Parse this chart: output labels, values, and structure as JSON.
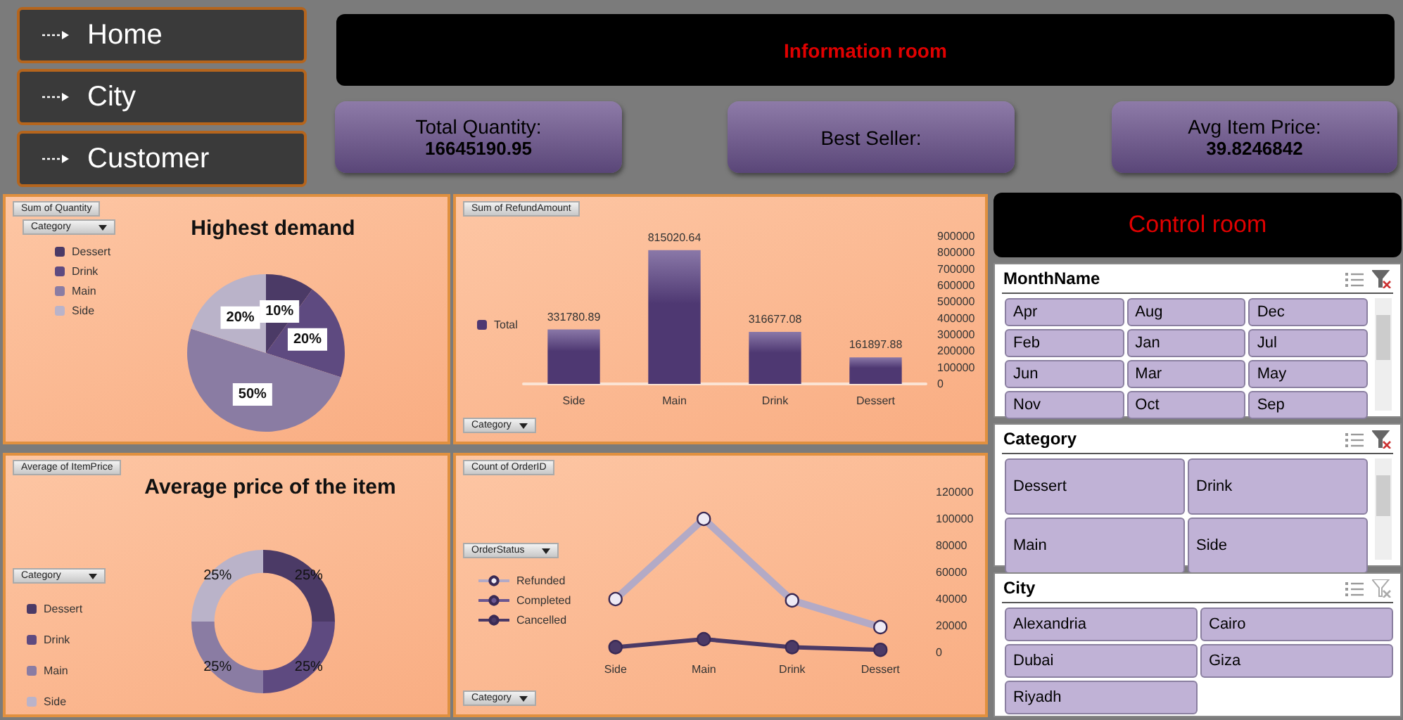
{
  "chart_data": [
    {
      "type": "other",
      "annotations": [
        "Home",
        "City",
        "Customer"
      ]
    },
    {
      "type": "other",
      "title": "Information room"
    },
    {
      "type": "other",
      "title": "Total Quantity:",
      "annotations": [
        "16645190.95"
      ]
    },
    {
      "type": "other",
      "title": "Best Seller:"
    },
    {
      "type": "other",
      "title": "Avg Item Price:",
      "annotations": [
        "39.8246842"
      ]
    },
    {
      "type": "pie",
      "title": "Highest demand",
      "categories": [
        "Dessert",
        "Drink",
        "Main",
        "Side"
      ],
      "values": [
        10,
        20,
        50,
        20
      ],
      "value_labels": [
        "10%",
        "20%",
        "50%",
        "20%"
      ],
      "colors": [
        "#4b3a66",
        "#5e4a80",
        "#8a7ca3",
        "#bab3c9"
      ],
      "legend": "top left",
      "legend_title": "Category",
      "annotations": [
        "Sum of Quantity"
      ]
    },
    {
      "type": "bar",
      "categories": [
        "Side",
        "Main",
        "Drink",
        "Dessert"
      ],
      "series": [
        {
          "name": "Total",
          "color": "#4e3872",
          "values": [
            331780.89,
            815020.64,
            316677.08,
            161897.88
          ]
        }
      ],
      "ylim": [
        0,
        900000
      ],
      "yticks": [
        0,
        100000,
        200000,
        300000,
        400000,
        500000,
        600000,
        700000,
        800000,
        900000
      ],
      "data_labels": true,
      "legend": "left",
      "annotations": [
        "Sum of RefundAmount",
        "Category"
      ]
    },
    {
      "type": "donut",
      "title": "Average price of the item",
      "categories": [
        "Dessert",
        "Drink",
        "Main",
        "Side"
      ],
      "values": [
        25,
        25,
        25,
        25
      ],
      "value_labels": [
        "25%",
        "25%",
        "25%",
        "25%"
      ],
      "colors": [
        "#4b3a66",
        "#5e4a80",
        "#8a7ca3",
        "#bab3c9"
      ],
      "legend": "left",
      "legend_title": "Category",
      "annotations": [
        "Average of ItemPrice"
      ]
    },
    {
      "type": "line",
      "categories": [
        "Side",
        "Main",
        "Drink",
        "Dessert"
      ],
      "series": [
        {
          "name": "Refunded",
          "color": "#b3aac6",
          "values": [
            40000,
            100000,
            39000,
            19000
          ]
        },
        {
          "name": "Completed",
          "color": "#6a5690",
          "values": [
            null,
            null,
            null,
            null
          ]
        },
        {
          "name": "Cancelled",
          "color": "#4b3a66",
          "values": [
            4000,
            10000,
            4000,
            2000
          ]
        }
      ],
      "ylim": [
        0,
        120000
      ],
      "yticks": [
        0,
        20000,
        40000,
        60000,
        80000,
        100000,
        120000
      ],
      "marker": "circle",
      "legend": "left",
      "legend_title": "OrderStatus",
      "annotations": [
        "Count of OrderID",
        "Category"
      ]
    },
    {
      "type": "other",
      "title": "Control room"
    },
    {
      "type": "other",
      "title": "MonthName",
      "annotations": [
        "Apr",
        "Aug",
        "Dec",
        "Feb",
        "Jan",
        "Jul",
        "Jun",
        "Mar",
        "May",
        "Nov",
        "Oct",
        "Sep"
      ]
    },
    {
      "type": "other",
      "title": "Category",
      "annotations": [
        "Dessert",
        "Drink",
        "Main",
        "Side"
      ]
    },
    {
      "type": "other",
      "title": "City",
      "annotations": [
        "Alexandria",
        "Cairo",
        "Dubai",
        "Giza",
        "Riyadh"
      ]
    }
  ]
}
